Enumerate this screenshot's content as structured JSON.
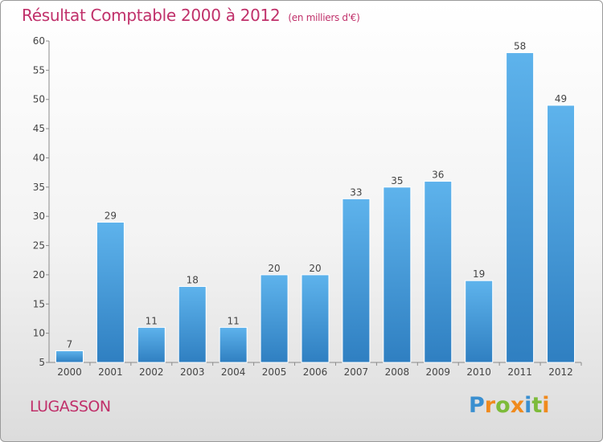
{
  "chart_data": {
    "type": "bar",
    "title": "Résultat Comptable 2000 à 2012",
    "subtitle": "(en milliers d'€)",
    "categories": [
      "2000",
      "2001",
      "2002",
      "2003",
      "2004",
      "2005",
      "2006",
      "2007",
      "2008",
      "2009",
      "2010",
      "2011",
      "2012"
    ],
    "values": [
      7,
      29,
      11,
      18,
      11,
      20,
      20,
      33,
      35,
      36,
      19,
      58,
      49
    ],
    "ylim": [
      5,
      60
    ],
    "yticks": [
      5,
      10,
      15,
      20,
      25,
      30,
      35,
      40,
      45,
      50,
      55,
      60
    ],
    "xlabel": "",
    "ylabel": "",
    "grid": false,
    "bar_color": "#4a9ee0"
  },
  "place_name": "LUGASSON",
  "logo": {
    "text": "Proxiti",
    "colors": [
      "#3a8fd0",
      "#f08a1d",
      "#7dbb3a"
    ]
  }
}
